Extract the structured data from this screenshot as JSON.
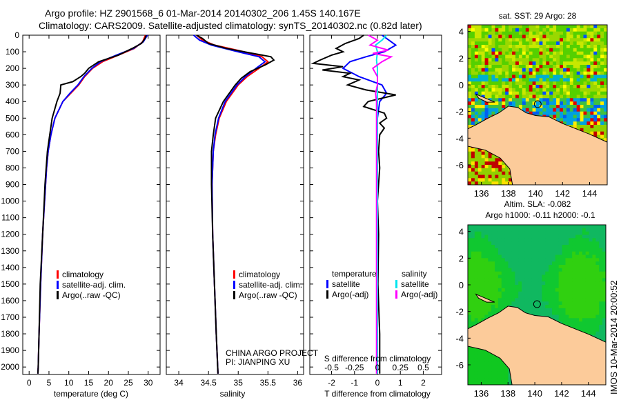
{
  "title_line1": "Argo profile: HZ 2901568_6 01-Mar-2014 20140302_206 1.45S 140.167E",
  "title_line2": "Climatology: CARS2009. Satellite-adjusted climatology: synTS_20140302.nc (0.82d later)",
  "colors": {
    "climatology": "#ff0000",
    "satellite": "#0000ff",
    "argo": "#000000",
    "sal_satellite": "#00e5ee",
    "sal_argo": "#ff00ff",
    "land": "#fccb9a"
  },
  "chart_data": [
    {
      "type": "line",
      "name": "temperature",
      "xlabel": "temperature (deg C)",
      "ylabel": "",
      "xlim": [
        -1.6,
        33
      ],
      "ylim": [
        2045,
        0
      ],
      "xticks": [
        "0",
        "5",
        "10",
        "15",
        "20",
        "25",
        "30"
      ],
      "xtick_values": [
        0,
        5,
        10,
        15,
        20,
        25,
        30
      ],
      "yticks": [
        "0",
        "100",
        "200",
        "300",
        "400",
        "500",
        "600",
        "700",
        "800",
        "900",
        "1000",
        "1100",
        "1200",
        "1300",
        "1400",
        "1500",
        "1600",
        "1700",
        "1800",
        "1900",
        "2000"
      ],
      "legend": [
        "climatology",
        "satellite-adj. clim.",
        "Argo(..raw -QC)"
      ],
      "series": [
        {
          "name": "climatology",
          "depth": [
            0,
            40,
            80,
            120,
            160,
            200,
            250,
            300,
            350,
            400,
            500,
            600,
            700,
            800,
            1000,
            1200,
            1500,
            1800,
            2000,
            2040
          ],
          "values": [
            29.3,
            28.6,
            26.5,
            22.5,
            18.5,
            16,
            14,
            12.5,
            10.5,
            8.5,
            6.5,
            5.5,
            4.8,
            4.4,
            3.9,
            3.4,
            2.9,
            2.5,
            2.3,
            2.2
          ]
        },
        {
          "name": "satellite-adj. clim.",
          "depth": [
            0,
            40,
            80,
            120,
            160,
            200,
            250,
            300,
            350,
            400,
            500,
            600,
            700,
            800,
            1000,
            1200,
            1500,
            1800,
            2000,
            2040
          ],
          "values": [
            29.8,
            28.8,
            26.3,
            22,
            18,
            15.8,
            13.8,
            12.3,
            10.3,
            8.5,
            6.5,
            5.5,
            4.8,
            4.4,
            3.9,
            3.4,
            2.9,
            2.5,
            2.3,
            2.2
          ]
        },
        {
          "name": "Argo(..raw -QC)",
          "depth": [
            0,
            20,
            50,
            80,
            120,
            160,
            200,
            230,
            250,
            280,
            300,
            350,
            400,
            500,
            600,
            700,
            800,
            900,
            1000,
            1200,
            1500,
            1800,
            2000,
            2040
          ],
          "values": [
            29.5,
            29.2,
            28.3,
            26,
            22.5,
            17.5,
            15,
            14,
            13,
            11,
            8,
            7.8,
            7,
            5.8,
            5.2,
            4.6,
            4.3,
            4,
            3.8,
            3.4,
            2.8,
            2.5,
            2.3,
            2.2
          ]
        }
      ]
    },
    {
      "type": "line",
      "name": "salinity",
      "xlabel": "salinity",
      "xlim": [
        33.79,
        36.1
      ],
      "ylim": [
        2045,
        0
      ],
      "xticks": [
        "34",
        "34.5",
        "35",
        "35.5",
        "36"
      ],
      "xtick_values": [
        34,
        34.5,
        35,
        35.5,
        36
      ],
      "legend": [
        "climatology",
        "satellite-adj. clim.",
        "Argo(..raw -QC)"
      ],
      "annotation_line1": "CHINA ARGO PROJECT",
      "annotation_line2": "PI: JIANPING XU",
      "series": [
        {
          "name": "climatology",
          "depth": [
            0,
            30,
            60,
            100,
            130,
            160,
            200,
            250,
            300,
            400,
            500,
            600,
            700,
            900,
            1200,
            1500,
            1800,
            2040
          ],
          "values": [
            34.3,
            34.4,
            34.6,
            35.1,
            35.4,
            35.5,
            35.35,
            35.15,
            35.0,
            34.8,
            34.68,
            34.62,
            34.58,
            34.56,
            34.57,
            34.6,
            34.63,
            34.66
          ]
        },
        {
          "name": "satellite-adj. clim.",
          "depth": [
            0,
            30,
            60,
            100,
            130,
            160,
            200,
            250,
            300,
            400,
            500,
            600,
            700,
            900,
            1200,
            1500,
            1800,
            2040
          ],
          "values": [
            34.25,
            34.35,
            34.55,
            35.0,
            35.35,
            35.45,
            35.3,
            35.12,
            34.98,
            34.78,
            34.67,
            34.61,
            34.58,
            34.56,
            34.57,
            34.6,
            34.63,
            34.66
          ]
        },
        {
          "name": "Argo(..raw -QC)",
          "depth": [
            0,
            20,
            50,
            80,
            100,
            130,
            150,
            180,
            220,
            260,
            300,
            400,
            500,
            600,
            700,
            900,
            1200,
            1500,
            1800,
            2040
          ],
          "values": [
            34.3,
            34.4,
            34.5,
            34.8,
            35.1,
            35.55,
            35.6,
            35.45,
            35.2,
            35.05,
            34.95,
            34.75,
            34.62,
            34.58,
            34.55,
            34.55,
            34.57,
            34.6,
            34.63,
            34.66
          ]
        }
      ]
    },
    {
      "type": "line",
      "name": "difference",
      "xlabel": "T difference from climatology",
      "x2label": "S difference from climatology",
      "xlim": [
        -2.95,
        2.8
      ],
      "ylim": [
        2045,
        0
      ],
      "xticks": [
        "-2",
        "-1",
        "0",
        "1",
        "2"
      ],
      "xtick_values": [
        -2,
        -1,
        0,
        1,
        2
      ],
      "x2ticks": [
        "-0.5",
        "-0.25",
        "0",
        "0.25",
        "0.5"
      ],
      "x2tick_values": [
        -0.5,
        -0.25,
        0,
        0.25,
        0.5
      ],
      "legend_temperature_title": "temperature",
      "legend_salinity_title": "salinity",
      "legend": [
        "satellite",
        "Argo(-adj)",
        "satellite",
        "Argo(-adj)"
      ],
      "series": [
        {
          "name": "temperature satellite",
          "depth": [
            0,
            30,
            60,
            100,
            130,
            160,
            200,
            250,
            300,
            350,
            400,
            500,
            600,
            800,
            1000,
            1500,
            2040
          ],
          "values": [
            0.2,
            0.5,
            0.8,
            0.3,
            -0.5,
            -1.2,
            -1.5,
            -0.8,
            0.2,
            0.4,
            0.1,
            0,
            0,
            0,
            0,
            0,
            0
          ]
        },
        {
          "name": "temperature Argo(-adj)",
          "depth": [
            0,
            20,
            50,
            80,
            100,
            120,
            150,
            170,
            190,
            210,
            230,
            250,
            270,
            300,
            330,
            360,
            400,
            430,
            470,
            500,
            530,
            560,
            600,
            700,
            800,
            1000,
            1200,
            1500,
            1800,
            2040
          ],
          "values": [
            -0.6,
            -0.8,
            -1.4,
            -1.8,
            -1.5,
            -2.0,
            -2.5,
            -2.8,
            -1.5,
            -2.4,
            -1.2,
            -1.5,
            -0.8,
            -1.3,
            -0.5,
            0.8,
            -0.4,
            -0.6,
            0.3,
            0.4,
            0.1,
            0.3,
            0.1,
            0.05,
            0.1,
            0.0,
            0.05,
            0.02,
            0.1,
            0.1
          ]
        },
        {
          "name": "salinity satellite",
          "depth": [
            0,
            30,
            60,
            100,
            150,
            200,
            300,
            400,
            600,
            1000,
            2040
          ],
          "values": [
            0.1,
            0.05,
            -0.02,
            0.0,
            -0.01,
            0.0,
            0.0,
            0.0,
            0.0,
            0.0,
            0.0
          ]
        },
        {
          "name": "salinity Argo(-adj)",
          "depth": [
            0,
            30,
            60,
            90,
            110,
            130,
            160,
            200,
            250,
            300,
            350,
            400,
            500,
            700,
            1000,
            2040
          ],
          "values": [
            -0.1,
            0.0,
            -0.08,
            0.12,
            -0.05,
            0.15,
            0.05,
            -0.05,
            0.0,
            0.0,
            -0.02,
            -0.01,
            -0.01,
            -0.01,
            -0.01,
            -0.01
          ]
        }
      ]
    },
    {
      "type": "heatmap",
      "name": "sst-map",
      "title": "sat. SST: 29 Argo: 28",
      "xticks": [
        "136",
        "138",
        "140",
        "142",
        "144"
      ],
      "xtick_values": [
        136,
        138,
        140,
        142,
        144
      ],
      "yticks": [
        "4",
        "2",
        "0",
        "-2",
        "-4",
        "-6"
      ],
      "ytick_values": [
        4,
        2,
        0,
        -2,
        -4,
        -6
      ],
      "xlim": [
        135,
        145.3
      ],
      "ylim": [
        -7.5,
        4.5
      ],
      "argo_position": [
        140.167,
        -1.45
      ]
    },
    {
      "type": "heatmap",
      "name": "sla-map",
      "title_line1": "Altim. SLA: -0.082",
      "title_line2": "Argo h1000: -0.11 h2000: -0.1",
      "xticks": [
        "136",
        "138",
        "140",
        "142",
        "144"
      ],
      "xtick_values": [
        136,
        138,
        140,
        142,
        144
      ],
      "yticks": [
        "4",
        "2",
        "0",
        "-2",
        "-4",
        "-6"
      ],
      "ytick_values": [
        4,
        2,
        0,
        -2,
        -4,
        -6
      ],
      "xlim": [
        135,
        145.3
      ],
      "ylim": [
        -7.5,
        4.5
      ],
      "argo_position": [
        140.167,
        -1.45
      ]
    }
  ],
  "footer_stamp": "IMOS 10-Mar-2014 20:00:52"
}
